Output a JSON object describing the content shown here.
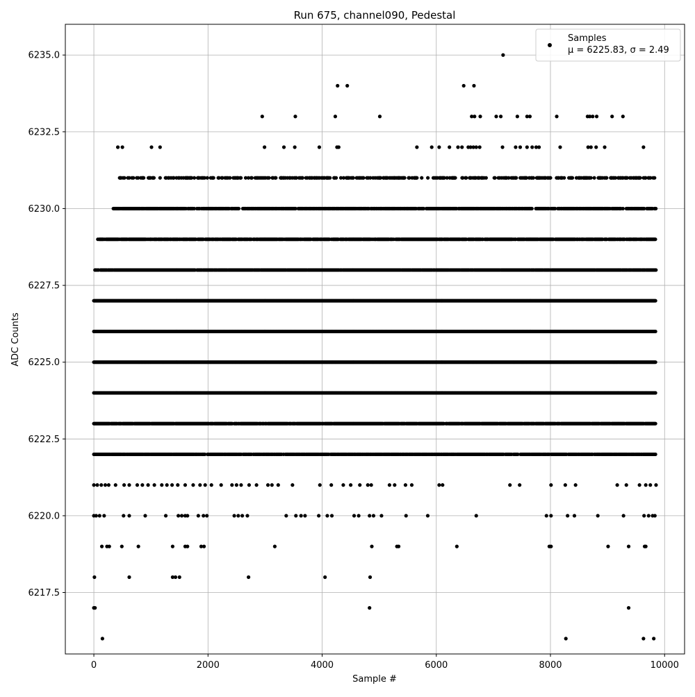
{
  "chart_data": {
    "type": "scatter",
    "title": "Run 675, channel090, Pedestal",
    "xlabel": "Sample #",
    "ylabel": "ADC Counts",
    "xlim": [
      -500,
      10350
    ],
    "ylim": [
      6215.5,
      6236
    ],
    "x_ticks": [
      0,
      2000,
      4000,
      6000,
      8000,
      10000
    ],
    "y_ticks": [
      6217.5,
      6220.0,
      6222.5,
      6225.0,
      6227.5,
      6230.0,
      6232.5,
      6235.0
    ],
    "x_tick_labels": [
      "0",
      "2000",
      "4000",
      "6000",
      "8000",
      "10000"
    ],
    "y_tick_labels": [
      "6217.5",
      "6220.0",
      "6222.5",
      "6225.0",
      "6227.5",
      "6230.0",
      "6232.5",
      "6235.0"
    ],
    "grid": true,
    "legend": {
      "position": "top-right",
      "entry_name": "Samples",
      "entry_stats": "μ = 6225.83, σ = 2.49"
    },
    "series": [
      {
        "name": "Samples",
        "color": "#000000",
        "marker": "circle",
        "points": [
          [
            0,
            6217
          ],
          [
            20,
            6217
          ],
          [
            10,
            6218
          ],
          [
            150,
            6216
          ],
          [
            8270,
            6216
          ],
          [
            9630,
            6216
          ],
          [
            9810,
            6216
          ],
          [
            4830,
            6217
          ],
          [
            9370,
            6217
          ],
          [
            1380,
            6218
          ],
          [
            1430,
            6218
          ],
          [
            1500,
            6218
          ],
          [
            620,
            6218
          ],
          [
            2710,
            6218
          ],
          [
            4050,
            6218
          ],
          [
            4840,
            6218
          ],
          [
            140,
            6219
          ],
          [
            230,
            6219
          ],
          [
            270,
            6219
          ],
          [
            490,
            6219
          ],
          [
            780,
            6219
          ],
          [
            1380,
            6219
          ],
          [
            1600,
            6219
          ],
          [
            1640,
            6219
          ],
          [
            1880,
            6219
          ],
          [
            1930,
            6219
          ],
          [
            3170,
            6219
          ],
          [
            4870,
            6219
          ],
          [
            5310,
            6219
          ],
          [
            5340,
            6219
          ],
          [
            6360,
            6219
          ],
          [
            7980,
            6219
          ],
          [
            8010,
            6219
          ],
          [
            9010,
            6219
          ],
          [
            9370,
            6219
          ],
          [
            9650,
            6219
          ],
          [
            9670,
            6219
          ],
          [
            0,
            6220
          ],
          [
            40,
            6220
          ],
          [
            100,
            6220
          ],
          [
            180,
            6220
          ],
          [
            520,
            6220
          ],
          [
            620,
            6220
          ],
          [
            900,
            6220
          ],
          [
            1260,
            6220
          ],
          [
            1480,
            6220
          ],
          [
            1540,
            6220
          ],
          [
            1600,
            6220
          ],
          [
            1640,
            6220
          ],
          [
            1830,
            6220
          ],
          [
            1920,
            6220
          ],
          [
            1980,
            6220
          ],
          [
            2460,
            6220
          ],
          [
            2530,
            6220
          ],
          [
            2600,
            6220
          ],
          [
            2690,
            6220
          ],
          [
            3370,
            6220
          ],
          [
            3540,
            6220
          ],
          [
            3630,
            6220
          ],
          [
            3700,
            6220
          ],
          [
            3940,
            6220
          ],
          [
            4090,
            6220
          ],
          [
            4170,
            6220
          ],
          [
            4560,
            6220
          ],
          [
            4640,
            6220
          ],
          [
            4830,
            6220
          ],
          [
            4900,
            6220
          ],
          [
            5040,
            6220
          ],
          [
            5470,
            6220
          ],
          [
            5850,
            6220
          ],
          [
            6700,
            6220
          ],
          [
            7930,
            6220
          ],
          [
            8010,
            6220
          ],
          [
            8300,
            6220
          ],
          [
            8420,
            6220
          ],
          [
            8830,
            6220
          ],
          [
            9280,
            6220
          ],
          [
            9640,
            6220
          ],
          [
            9720,
            6220
          ],
          [
            9790,
            6220
          ],
          [
            9830,
            6220
          ],
          [
            0,
            6221
          ],
          [
            60,
            6221
          ],
          [
            130,
            6221
          ],
          [
            200,
            6221
          ],
          [
            260,
            6221
          ],
          [
            380,
            6221
          ],
          [
            530,
            6221
          ],
          [
            620,
            6221
          ],
          [
            760,
            6221
          ],
          [
            850,
            6221
          ],
          [
            950,
            6221
          ],
          [
            1060,
            6221
          ],
          [
            1190,
            6221
          ],
          [
            1280,
            6221
          ],
          [
            1370,
            6221
          ],
          [
            1470,
            6221
          ],
          [
            1600,
            6221
          ],
          [
            1740,
            6221
          ],
          [
            1860,
            6221
          ],
          [
            1950,
            6221
          ],
          [
            2060,
            6221
          ],
          [
            2230,
            6221
          ],
          [
            2420,
            6221
          ],
          [
            2500,
            6221
          ],
          [
            2580,
            6221
          ],
          [
            2720,
            6221
          ],
          [
            2850,
            6221
          ],
          [
            3050,
            6221
          ],
          [
            3120,
            6221
          ],
          [
            3230,
            6221
          ],
          [
            3480,
            6221
          ],
          [
            3960,
            6221
          ],
          [
            4160,
            6221
          ],
          [
            4370,
            6221
          ],
          [
            4500,
            6221
          ],
          [
            4660,
            6221
          ],
          [
            4800,
            6221
          ],
          [
            4860,
            6221
          ],
          [
            5180,
            6221
          ],
          [
            5270,
            6221
          ],
          [
            5460,
            6221
          ],
          [
            5570,
            6221
          ],
          [
            6050,
            6221
          ],
          [
            6110,
            6221
          ],
          [
            7290,
            6221
          ],
          [
            7460,
            6221
          ],
          [
            8010,
            6221
          ],
          [
            8260,
            6221
          ],
          [
            8440,
            6221
          ],
          [
            9170,
            6221
          ],
          [
            9330,
            6221
          ],
          [
            9560,
            6221
          ],
          [
            9670,
            6221
          ],
          [
            9750,
            6221
          ],
          [
            9850,
            6221
          ],
          [
            420,
            6232
          ],
          [
            500,
            6232
          ],
          [
            1010,
            6232
          ],
          [
            1160,
            6232
          ],
          [
            2990,
            6232
          ],
          [
            3330,
            6232
          ],
          [
            3520,
            6232
          ],
          [
            3950,
            6232
          ],
          [
            4260,
            6232
          ],
          [
            4290,
            6232
          ],
          [
            5660,
            6232
          ],
          [
            5920,
            6232
          ],
          [
            6050,
            6232
          ],
          [
            6230,
            6232
          ],
          [
            6380,
            6232
          ],
          [
            6450,
            6232
          ],
          [
            6560,
            6232
          ],
          [
            6600,
            6232
          ],
          [
            6650,
            6232
          ],
          [
            6700,
            6232
          ],
          [
            6760,
            6232
          ],
          [
            7160,
            6232
          ],
          [
            7390,
            6232
          ],
          [
            7470,
            6232
          ],
          [
            7590,
            6232
          ],
          [
            7680,
            6232
          ],
          [
            7750,
            6232
          ],
          [
            7800,
            6232
          ],
          [
            8170,
            6232
          ],
          [
            8660,
            6232
          ],
          [
            8710,
            6232
          ],
          [
            8800,
            6232
          ],
          [
            8950,
            6232
          ],
          [
            9630,
            6232
          ],
          [
            2950,
            6233
          ],
          [
            3530,
            6233
          ],
          [
            4230,
            6233
          ],
          [
            5010,
            6233
          ],
          [
            6620,
            6233
          ],
          [
            6670,
            6233
          ],
          [
            6770,
            6233
          ],
          [
            7050,
            6233
          ],
          [
            7130,
            6233
          ],
          [
            7420,
            6233
          ],
          [
            7590,
            6233
          ],
          [
            7640,
            6233
          ],
          [
            8110,
            6233
          ],
          [
            8650,
            6233
          ],
          [
            8690,
            6233
          ],
          [
            8740,
            6233
          ],
          [
            8810,
            6233
          ],
          [
            9080,
            6233
          ],
          [
            9270,
            6233
          ],
          [
            4270,
            6234
          ],
          [
            4440,
            6234
          ],
          [
            6480,
            6234
          ],
          [
            6660,
            6234
          ],
          [
            7170,
            6235
          ]
        ],
        "dense_bands": [
          {
            "y": 6231,
            "x_range": [
              440,
              9860
            ],
            "density": 0.45
          },
          {
            "y": 6230,
            "x_range": [
              330,
              9850
            ],
            "density": 0.8
          },
          {
            "y": 6229,
            "x_range": [
              70,
              9850
            ],
            "density": 0.85
          },
          {
            "y": 6228,
            "x_range": [
              20,
              9850
            ],
            "density": 0.95
          },
          {
            "y": 6227,
            "x_range": [
              0,
              9850
            ],
            "density": 1.0
          },
          {
            "y": 6226,
            "x_range": [
              0,
              9850
            ],
            "density": 1.0
          },
          {
            "y": 6225,
            "x_range": [
              0,
              9850
            ],
            "density": 1.0
          },
          {
            "y": 6224,
            "x_range": [
              0,
              9850
            ],
            "density": 1.0
          },
          {
            "y": 6223,
            "x_range": [
              0,
              9850
            ],
            "density": 0.95
          },
          {
            "y": 6222,
            "x_range": [
              0,
              9850
            ],
            "density": 0.85
          }
        ]
      }
    ]
  }
}
